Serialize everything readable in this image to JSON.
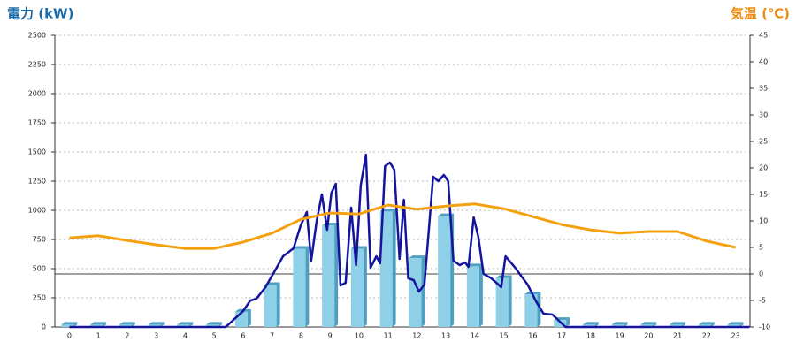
{
  "chart_data": {
    "type": "combo",
    "y_label": "電力 (kW)",
    "y2_label": "気温 (℃)",
    "categories": [
      "0",
      "1",
      "2",
      "3",
      "4",
      "5",
      "6",
      "7",
      "8",
      "9",
      "10",
      "11",
      "12",
      "13",
      "14",
      "15",
      "16",
      "17",
      "18",
      "19",
      "20",
      "21",
      "22",
      "23"
    ],
    "xlim": [
      -0.5,
      23.5
    ],
    "ylim": [
      0,
      2500
    ],
    "yticks": [
      0,
      250,
      500,
      750,
      1000,
      1250,
      1500,
      1750,
      2000,
      2250,
      2500
    ],
    "y2lim": [
      -10,
      45
    ],
    "y2ticks": [
      -10,
      -5,
      0,
      5,
      10,
      15,
      20,
      25,
      30,
      35,
      40,
      45
    ],
    "grid": true,
    "series": [
      {
        "kind": "bar",
        "color": "#8dd0e8",
        "side_color": "#4f9fc0",
        "values": [
          20,
          20,
          20,
          20,
          20,
          20,
          130,
          360,
          670,
          870,
          670,
          990,
          590,
          950,
          520,
          420,
          280,
          60,
          20,
          20,
          20,
          20,
          20,
          20
        ]
      },
      {
        "kind": "line",
        "color": "#14149c",
        "x": [
          0,
          5.4,
          6.0,
          6.25,
          6.46,
          6.77,
          7.07,
          7.38,
          7.74,
          7.99,
          8.2,
          8.35,
          8.54,
          8.72,
          8.9,
          9.05,
          9.2,
          9.36,
          9.54,
          9.73,
          9.9,
          10.06,
          10.24,
          10.4,
          10.6,
          10.73,
          10.9,
          11.07,
          11.22,
          11.4,
          11.55,
          11.7,
          11.89,
          12.07,
          12.26,
          12.56,
          12.74,
          12.93,
          13.08,
          13.26,
          13.48,
          13.66,
          13.78,
          13.96,
          14.12,
          14.3,
          14.57,
          14.91,
          15.06,
          15.37,
          15.82,
          16.13,
          16.37,
          16.68,
          17.13,
          23.48
        ],
        "values": [
          0,
          0,
          136,
          227,
          242,
          340,
          470,
          606,
          674,
          871,
          985,
          568,
          909,
          1136,
          833,
          1152,
          1227,
          356,
          379,
          1023,
          530,
          1212,
          1477,
          508,
          606,
          545,
          1379,
          1409,
          1348,
          583,
          1091,
          417,
          401,
          303,
          364,
          1288,
          1250,
          1303,
          1250,
          568,
          530,
          553,
          515,
          939,
          773,
          455,
          417,
          341,
          606,
          515,
          364,
          212,
          114,
          106,
          0,
          0
        ]
      },
      {
        "kind": "line",
        "axis": "y2",
        "color": "#f5a00f",
        "values": [
          6.8,
          7.2,
          6.3,
          5.5,
          4.8,
          4.8,
          6.0,
          7.7,
          10.3,
          11.5,
          11.3,
          13.0,
          12.2,
          12.8,
          13.2,
          12.3,
          10.8,
          9.3,
          8.3,
          7.7,
          8.0,
          8.0,
          6.2,
          5.0
        ]
      }
    ]
  }
}
